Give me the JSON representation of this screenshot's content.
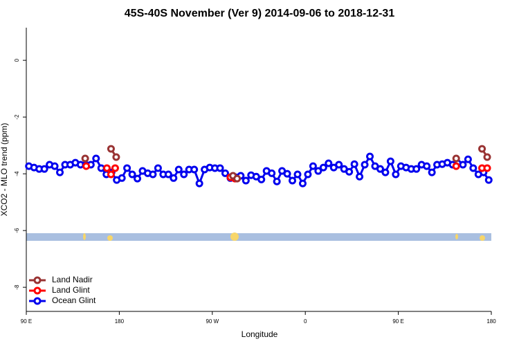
{
  "chart_data": {
    "type": "line",
    "title": "45S-40S November (Ver 9)   2014-09-06 to 2018-12-31",
    "xlabel": "Longitude",
    "ylabel": "XCO2 - MLO trend (ppm)",
    "xlim": [
      90,
      540
    ],
    "ylim": [
      -8.85,
      1.15
    ],
    "xticks": [
      {
        "value": 90,
        "label": "90 E"
      },
      180,
      {
        "value": 270,
        "label": "90 W"
      },
      {
        "value": 360,
        "label": "0"
      },
      {
        "value": 450,
        "label": "90 E"
      },
      {
        "value": 540,
        "label": "180"
      }
    ],
    "yticks": [
      0,
      -2,
      -4,
      -6,
      -8
    ],
    "legend": "bottom-left",
    "series": [
      {
        "name": "Ocean Glint",
        "color": "#0000ee",
        "x": [
          92.5,
          97.5,
          102.5,
          107.5,
          112.5,
          117.5,
          122.5,
          127.5,
          132.5,
          137.5,
          142.5,
          147.5,
          152.5,
          157.5,
          162.5,
          167.5,
          172.5,
          177.5,
          182.5,
          187.5,
          192.5,
          197.5,
          202.5,
          207.5,
          212.5,
          217.5,
          222.5,
          227.5,
          232.5,
          237.5,
          242.5,
          247.5,
          252.5,
          257.5,
          262.5,
          267.5,
          272.5,
          277.5,
          282.5,
          287.5,
          292.5,
          297.5,
          302.5,
          307.5,
          312.5,
          317.5,
          322.5,
          327.5,
          332.5,
          337.5,
          342.5,
          347.5,
          352.5,
          357.5,
          362.5,
          367.5,
          372.5,
          377.5,
          382.5,
          387.5,
          392.5,
          397.5,
          402.5,
          407.5,
          412.5,
          417.5,
          422.5,
          427.5,
          432.5,
          437.5,
          442.5,
          447.5,
          452.5,
          457.5,
          462.5,
          467.5,
          472.5,
          477.5,
          482.5,
          487.5,
          492.5,
          497.5,
          502.5,
          507.5,
          512.5,
          517.5,
          522.5,
          527.5,
          532.5,
          537.5
        ],
        "values": [
          -3.73,
          -3.78,
          -3.83,
          -3.83,
          -3.68,
          -3.73,
          -3.95,
          -3.68,
          -3.68,
          -3.61,
          -3.68,
          -3.68,
          -3.68,
          -3.46,
          -3.8,
          -4.02,
          -3.95,
          -4.22,
          -4.15,
          -3.8,
          -4.02,
          -4.17,
          -3.9,
          -3.98,
          -4.02,
          -3.8,
          -4.02,
          -4.02,
          -4.15,
          -3.85,
          -4.02,
          -3.85,
          -3.85,
          -4.34,
          -3.85,
          -3.78,
          -3.8,
          -3.8,
          -3.98,
          -4.15,
          -4.12,
          -4.07,
          -4.24,
          -4.05,
          -4.1,
          -4.2,
          -3.9,
          -3.98,
          -4.27,
          -3.9,
          -4.0,
          -4.24,
          -4.02,
          -4.34,
          -4.02,
          -3.73,
          -3.9,
          -3.78,
          -3.63,
          -3.78,
          -3.68,
          -3.83,
          -3.93,
          -3.66,
          -4.1,
          -3.68,
          -3.39,
          -3.73,
          -3.83,
          -3.95,
          -3.56,
          -4.02,
          -3.73,
          -3.78,
          -3.83,
          -3.83,
          -3.68,
          -3.73,
          -3.95,
          -3.68,
          -3.66,
          -3.61,
          -3.68,
          -3.63,
          -3.68,
          -3.49,
          -3.8,
          -4.02,
          -3.95,
          -4.22
        ]
      },
      {
        "name": "Land Glint",
        "color": "#ff0000",
        "x": [
          148,
          160,
          168,
          172,
          176,
          230,
          287.5,
          292,
          400,
          506,
          520,
          531,
          536
        ],
        "values": [
          -3.73,
          null,
          -3.8,
          -4.02,
          -3.8,
          null,
          -4.12,
          -4.17,
          null,
          -3.73,
          null,
          -3.8,
          -3.8
        ]
      },
      {
        "name": "Land Nadir",
        "color": "#993333",
        "x": [
          147,
          160,
          172,
          177,
          230,
          290,
          294,
          400,
          506,
          520,
          531,
          536
        ],
        "values": [
          -3.46,
          null,
          -3.12,
          -3.41,
          null,
          -4.07,
          -4.17,
          null,
          -3.46,
          null,
          -3.12,
          -3.41
        ]
      }
    ]
  }
}
